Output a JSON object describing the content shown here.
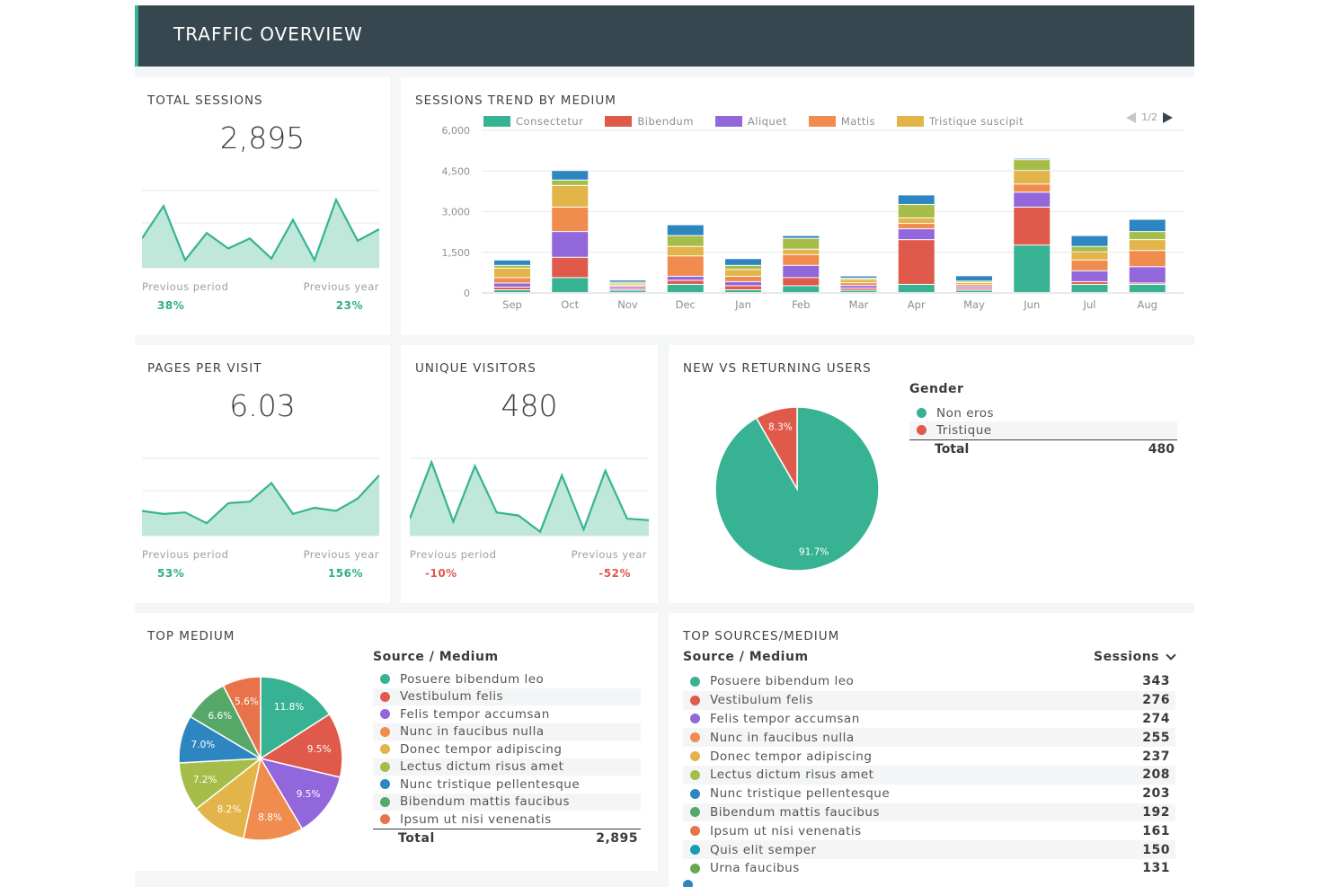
{
  "header": {
    "title": "TRAFFIC OVERVIEW"
  },
  "total_sessions": {
    "title": "TOTAL SESSIONS",
    "value": "2,895",
    "prev_period_label": "Previous period",
    "prev_year_label": "Previous year",
    "prev_period_value": "38%",
    "prev_year_value": "23%",
    "spark": [
      38,
      80,
      10,
      45,
      25,
      38,
      12,
      62,
      10,
      88,
      35,
      50
    ]
  },
  "pages_per_visit": {
    "title": "PAGES PER VISIT",
    "value": "6.03",
    "prev_period_label": "Previous period",
    "prev_year_label": "Previous year",
    "prev_period_value": "53%",
    "prev_year_value": "156%",
    "spark": [
      32,
      28,
      30,
      16,
      42,
      44,
      68,
      28,
      36,
      32,
      48,
      78
    ]
  },
  "unique_visitors": {
    "title": "UNIQUE VISITORS",
    "value": "480",
    "prev_period_label": "Previous period",
    "prev_year_label": "Previous year",
    "prev_period_value": "-10%",
    "prev_year_value": "-52%",
    "spark": [
      22,
      95,
      18,
      90,
      30,
      26,
      5,
      78,
      8,
      84,
      22,
      20
    ]
  },
  "sessions_trend": {
    "title": "SESSIONS TREND BY MEDIUM",
    "pager": "1/2",
    "legend": [
      {
        "name": "Consectetur",
        "color": "#37b394"
      },
      {
        "name": "Bibendum",
        "color": "#e05a4c"
      },
      {
        "name": "Aliquet",
        "color": "#9267db"
      },
      {
        "name": "Mattis",
        "color": "#ef8c4e"
      },
      {
        "name": "Tristique suscipit",
        "color": "#e2b449"
      }
    ],
    "y_ticks": [
      "6,000",
      "4,500",
      "3,000",
      "1,500",
      "0"
    ]
  },
  "chart_data": {
    "type": "bar",
    "stacked": true,
    "categories": [
      "Sep",
      "Oct",
      "Nov",
      "Dec",
      "Jan",
      "Feb",
      "Mar",
      "Apr",
      "May",
      "Jun",
      "Jul",
      "Aug"
    ],
    "ylim": [
      0,
      6000
    ],
    "series": [
      {
        "name": "Consectetur",
        "color": "#37b394",
        "values": [
          100,
          550,
          80,
          300,
          100,
          250,
          80,
          300,
          80,
          1750,
          300,
          300
        ]
      },
      {
        "name": "Bibendum",
        "color": "#e05a4c",
        "values": [
          100,
          750,
          50,
          150,
          150,
          300,
          80,
          1650,
          60,
          1400,
          100,
          50
        ]
      },
      {
        "name": "Aliquet",
        "color": "#9267db",
        "values": [
          150,
          950,
          80,
          150,
          150,
          450,
          100,
          400,
          70,
          550,
          400,
          600
        ]
      },
      {
        "name": "Mattis",
        "color": "#ef8c4e",
        "values": [
          200,
          900,
          50,
          750,
          200,
          400,
          100,
          200,
          80,
          300,
          400,
          600
        ]
      },
      {
        "name": "Tristique suscipit",
        "color": "#e2b449",
        "values": [
          350,
          800,
          60,
          350,
          250,
          200,
          120,
          200,
          80,
          500,
          300,
          400
        ]
      },
      {
        "name": "",
        "color": "#a7bd49",
        "values": [
          100,
          200,
          60,
          400,
          150,
          400,
          50,
          500,
          50,
          400,
          200,
          300
        ]
      },
      {
        "name": "",
        "color": "#2e86c1",
        "values": [
          200,
          350,
          80,
          400,
          250,
          100,
          80,
          350,
          200,
          50,
          400,
          450
        ]
      }
    ]
  },
  "new_vs_returning": {
    "title": "NEW VS RETURNING USERS",
    "legend_title": "Gender",
    "items": [
      {
        "name": "Non eros",
        "color": "#37b394",
        "percent": 91.7,
        "label": "91.7%"
      },
      {
        "name": "Tristique",
        "color": "#e05a4c",
        "percent": 8.3,
        "label": "8.3%"
      }
    ],
    "total_label": "Total",
    "total_value": "480"
  },
  "top_medium": {
    "title": "TOP MEDIUM",
    "table_head": "Source / Medium",
    "items": [
      {
        "name": "Posuere bibendum leo",
        "color": "#37b394",
        "percent": 11.8,
        "label": "11.8%"
      },
      {
        "name": "Vestibulum felis",
        "color": "#e05a4c",
        "percent": 9.5,
        "label": "9.5%"
      },
      {
        "name": "Felis tempor accumsan",
        "color": "#9267db",
        "percent": 9.5,
        "label": "9.5%"
      },
      {
        "name": "Nunc in faucibus nulla",
        "color": "#ef8c4e",
        "percent": 8.8,
        "label": "8.8%"
      },
      {
        "name": "Donec tempor adipiscing",
        "color": "#e2b449",
        "percent": 8.2,
        "label": "8.2%"
      },
      {
        "name": "Lectus dictum risus amet",
        "color": "#a7bd49",
        "percent": 7.2,
        "label": "7.2%"
      },
      {
        "name": "Nunc tristique pellentesque",
        "color": "#2e86c1",
        "percent": 7.0,
        "label": "7.0%"
      },
      {
        "name": "Bibendum mattis faucibus",
        "color": "#55a868",
        "percent": 6.6,
        "label": "6.6%"
      },
      {
        "name": "Ipsum ut nisi venenatis",
        "color": "#e8734a",
        "percent": 5.6,
        "label": "5.6%"
      }
    ],
    "total_label": "Total",
    "total_value": "2,895"
  },
  "top_sources": {
    "title": "TOP SOURCES/MEDIUM",
    "head_source": "Source / Medium",
    "head_sessions": "Sessions",
    "rows": [
      {
        "name": "Posuere bibendum leo",
        "color": "#37b394",
        "value": "343"
      },
      {
        "name": "Vestibulum felis",
        "color": "#e05a4c",
        "value": "276"
      },
      {
        "name": "Felis tempor accumsan",
        "color": "#9267db",
        "value": "274"
      },
      {
        "name": "Nunc in faucibus nulla",
        "color": "#ef8c4e",
        "value": "255"
      },
      {
        "name": "Donec tempor adipiscing",
        "color": "#e2b449",
        "value": "237"
      },
      {
        "name": "Lectus dictum risus amet",
        "color": "#a7bd49",
        "value": "208"
      },
      {
        "name": "Nunc tristique pellentesque",
        "color": "#2e86c1",
        "value": "203"
      },
      {
        "name": "Bibendum mattis faucibus",
        "color": "#55a868",
        "value": "192"
      },
      {
        "name": "Ipsum ut nisi venenatis",
        "color": "#e8734a",
        "value": "161"
      },
      {
        "name": "Quis elit semper",
        "color": "#1a9bb0",
        "value": "150"
      },
      {
        "name": "Urna faucibus",
        "color": "#6aa84f",
        "value": "131"
      }
    ]
  }
}
